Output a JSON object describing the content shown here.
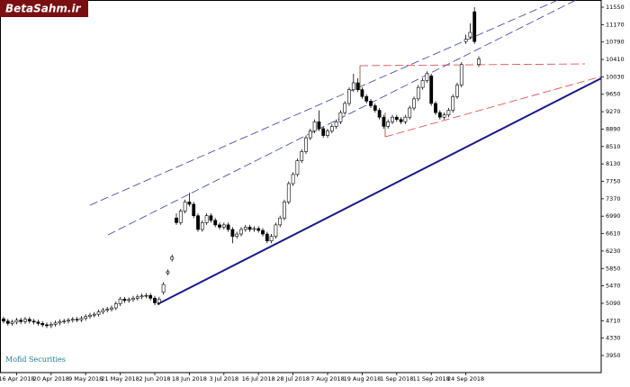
{
  "chart_data": {
    "type": "candlestick",
    "logo": "BetaSahm.ir",
    "annotation": "Mofid Securities",
    "up_color": "#ffffff",
    "down_color": "#000000",
    "wick_color": "#000000",
    "ylim": [
      3577,
      11707
    ],
    "yticks": [
      3950,
      4330,
      4710,
      5090,
      5470,
      5850,
      6230,
      6610,
      6990,
      7370,
      7750,
      8130,
      8510,
      8890,
      9270,
      9650,
      10030,
      10410,
      10790,
      11170,
      11550
    ],
    "categories": [
      null,
      null,
      null,
      "16 Apr 2018",
      null,
      null,
      null,
      null,
      null,
      null,
      null,
      "20 Apr 2018",
      null,
      null,
      null,
      null,
      null,
      null,
      null,
      "9 May 2018",
      null,
      null,
      null,
      null,
      null,
      null,
      null,
      "21 May 2018",
      null,
      null,
      null,
      null,
      null,
      null,
      null,
      "2 Jun 2018",
      null,
      null,
      null,
      null,
      null,
      null,
      null,
      "18 Jun 2018",
      null,
      null,
      null,
      null,
      null,
      null,
      null,
      "3 Jul 2018",
      null,
      null,
      null,
      null,
      null,
      null,
      null,
      "16 Jul 2018",
      null,
      null,
      null,
      null,
      null,
      null,
      null,
      "28 Jul 2018",
      null,
      null,
      null,
      null,
      null,
      null,
      null,
      "7 Aug 2018",
      null,
      null,
      null,
      null,
      null,
      null,
      null,
      "19 Aug 2018",
      null,
      null,
      null,
      null,
      null,
      null,
      null,
      "1 Sep 2018",
      null,
      null,
      null,
      null,
      null,
      null,
      null,
      "11 Sep 2018",
      null,
      null,
      null,
      null,
      null,
      null,
      null,
      "24 Sep 2018",
      null,
      null,
      null
    ],
    "open": [
      4750,
      4700,
      4650,
      4680,
      4720,
      4690,
      4740,
      4700,
      4680,
      4650,
      4620,
      4600,
      4630,
      4660,
      4690,
      4700,
      4720,
      4740,
      4730,
      4760,
      4800,
      4830,
      4850,
      4900,
      4940,
      4960,
      4990,
      5080,
      5180,
      5150,
      5170,
      5200,
      5230,
      5250,
      5260,
      5200,
      5100,
      5330,
      5750,
      6050,
      6950,
      6850,
      7100,
      7300,
      7250,
      7000,
      6700,
      6850,
      7000,
      6900,
      6800,
      6750,
      6800,
      6700,
      6550,
      6600,
      6700,
      6750,
      6700,
      6720,
      6680,
      6600,
      6450,
      6550,
      6800,
      6950,
      7300,
      7700,
      7900,
      8200,
      8400,
      8700,
      8850,
      9050,
      8900,
      8750,
      8850,
      8950,
      9050,
      9250,
      9450,
      9750,
      9900,
      9750,
      9600,
      9500,
      9400,
      9300,
      9150,
      8950,
      9050,
      9150,
      9100,
      9050,
      9150,
      9350,
      9550,
      9800,
      9950,
      10050,
      9450,
      9250,
      9150,
      9200,
      9300,
      9600,
      9850,
      10800,
      10900,
      11450,
      10300
    ],
    "high": [
      4800,
      4750,
      4730,
      4770,
      4770,
      4790,
      4790,
      4750,
      4730,
      4700,
      4670,
      4680,
      4710,
      4740,
      4750,
      4770,
      4790,
      4790,
      4810,
      4850,
      4880,
      4900,
      4950,
      4990,
      5010,
      5040,
      5130,
      5230,
      5230,
      5220,
      5250,
      5280,
      5300,
      5310,
      5310,
      5250,
      5230,
      5550,
      5830,
      6150,
      7050,
      7150,
      7350,
      7500,
      7300,
      7050,
      6900,
      7050,
      7050,
      6950,
      6850,
      6850,
      6850,
      6750,
      6650,
      6750,
      6800,
      6800,
      6770,
      6770,
      6730,
      6650,
      6600,
      6850,
      7000,
      7350,
      7750,
      7950,
      8250,
      8450,
      8750,
      8900,
      9100,
      9300,
      8950,
      8900,
      9000,
      9100,
      9300,
      9500,
      9800,
      10100,
      10000,
      9800,
      9650,
      9550,
      9450,
      9350,
      9200,
      9100,
      9200,
      9200,
      9150,
      9200,
      9400,
      9600,
      9850,
      10000,
      10150,
      10100,
      9500,
      9300,
      9250,
      9350,
      9650,
      9900,
      10350,
      10950,
      11200,
      11550,
      10480
    ],
    "low": [
      4650,
      4600,
      4600,
      4630,
      4640,
      4640,
      4650,
      4630,
      4600,
      4570,
      4550,
      4550,
      4580,
      4610,
      4640,
      4650,
      4670,
      4680,
      4680,
      4710,
      4750,
      4780,
      4800,
      4850,
      4890,
      4910,
      4940,
      5030,
      5100,
      5100,
      5120,
      5150,
      5180,
      5200,
      5150,
      5050,
      5050,
      5280,
      5700,
      6000,
      6800,
      6800,
      7050,
      7200,
      6950,
      6650,
      6650,
      6800,
      6850,
      6750,
      6700,
      6700,
      6650,
      6400,
      6500,
      6550,
      6650,
      6650,
      6650,
      6630,
      6550,
      6400,
      6400,
      6500,
      6750,
      6900,
      7250,
      7650,
      7850,
      8150,
      8350,
      8650,
      8800,
      8850,
      8700,
      8700,
      8800,
      8900,
      9000,
      9200,
      9400,
      9700,
      9700,
      9550,
      9450,
      9350,
      9250,
      9100,
      8900,
      8900,
      9000,
      9050,
      9000,
      9000,
      9100,
      9300,
      9500,
      9750,
      9900,
      9400,
      9200,
      9100,
      9100,
      9150,
      9250,
      9550,
      9800,
      10750,
      10850,
      10750,
      10250
    ],
    "close": [
      4700,
      4650,
      4680,
      4720,
      4690,
      4740,
      4700,
      4680,
      4650,
      4620,
      4600,
      4630,
      4660,
      4690,
      4700,
      4720,
      4740,
      4730,
      4760,
      4800,
      4830,
      4850,
      4900,
      4940,
      4960,
      4990,
      5080,
      5180,
      5150,
      5170,
      5200,
      5230,
      5250,
      5260,
      5200,
      5100,
      5180,
      5500,
      5780,
      6100,
      6850,
      7100,
      7300,
      7250,
      7000,
      6700,
      6850,
      7000,
      6900,
      6800,
      6750,
      6800,
      6700,
      6550,
      6600,
      6700,
      6750,
      6700,
      6720,
      6680,
      6600,
      6450,
      6550,
      6800,
      6950,
      7300,
      7700,
      7900,
      8200,
      8400,
      8700,
      8850,
      9050,
      8900,
      8750,
      8850,
      8950,
      9050,
      9250,
      9450,
      9750,
      9900,
      9750,
      9600,
      9500,
      9400,
      9300,
      9150,
      8950,
      9050,
      9150,
      9100,
      9050,
      9150,
      9350,
      9550,
      9800,
      9950,
      10100,
      9450,
      9250,
      9150,
      9200,
      9300,
      9600,
      9850,
      10300,
      10850,
      11000,
      10800,
      10420
    ]
  }
}
